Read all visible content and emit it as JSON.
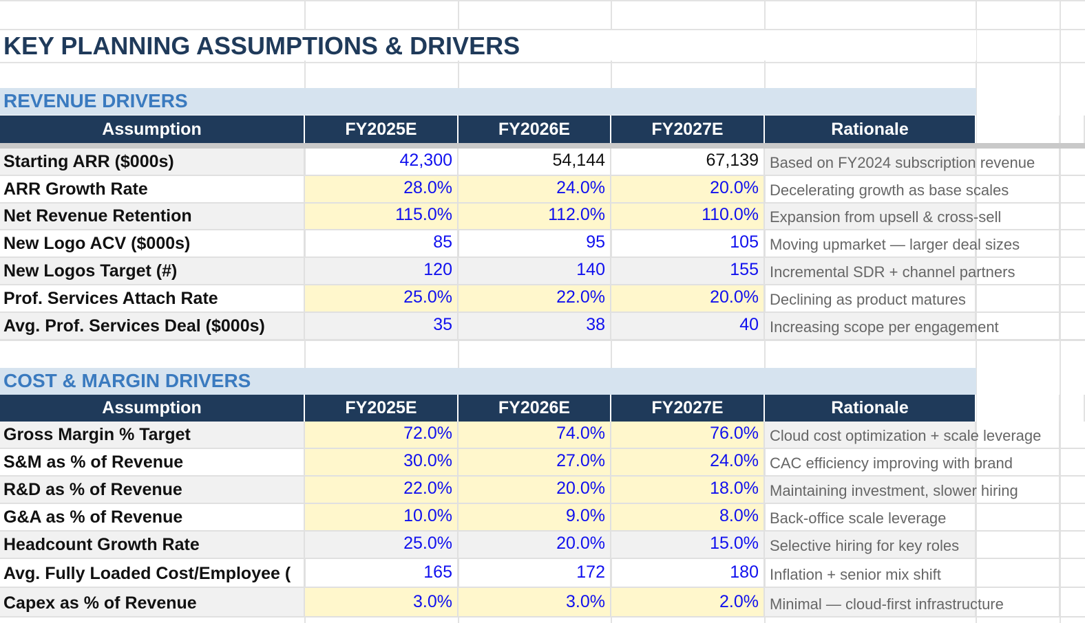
{
  "title": "KEY PLANNING ASSUMPTIONS & DRIVERS",
  "colors": {
    "header_bg": "#1f3a5a",
    "section_bg": "#d6e3ef",
    "section_text": "#3a7abf",
    "input_text": "#1010ee",
    "input_fill": "#fff7cc"
  },
  "columns": [
    "Assumption",
    "FY2025E",
    "FY2026E",
    "FY2027E",
    "Rationale"
  ],
  "revenue": {
    "title": "REVENUE DRIVERS",
    "rows": [
      {
        "label": "Starting ARR ($000s)",
        "values": [
          "42,300",
          "54,144",
          "67,139"
        ],
        "rationale": "Based on FY2024 subscription revenue"
      },
      {
        "label": "ARR Growth Rate",
        "values": [
          "28.0%",
          "24.0%",
          "20.0%"
        ],
        "rationale": "Decelerating growth as base scales"
      },
      {
        "label": "Net Revenue Retention",
        "values": [
          "115.0%",
          "112.0%",
          "110.0%"
        ],
        "rationale": "Expansion from upsell & cross-sell"
      },
      {
        "label": "New Logo ACV ($000s)",
        "values": [
          "85",
          "95",
          "105"
        ],
        "rationale": "Moving upmarket — larger deal sizes"
      },
      {
        "label": "New Logos Target (#)",
        "values": [
          "120",
          "140",
          "155"
        ],
        "rationale": "Incremental SDR + channel partners"
      },
      {
        "label": "Prof. Services Attach Rate",
        "values": [
          "25.0%",
          "22.0%",
          "20.0%"
        ],
        "rationale": "Declining as product matures"
      },
      {
        "label": "Avg. Prof. Services Deal ($000s)",
        "values": [
          "35",
          "38",
          "40"
        ],
        "rationale": "Increasing scope per engagement"
      }
    ]
  },
  "cost": {
    "title": "COST & MARGIN DRIVERS",
    "rows": [
      {
        "label": "Gross Margin % Target",
        "values": [
          "72.0%",
          "74.0%",
          "76.0%"
        ],
        "rationale": "Cloud cost optimization + scale leverage"
      },
      {
        "label": "S&M as % of Revenue",
        "values": [
          "30.0%",
          "27.0%",
          "24.0%"
        ],
        "rationale": "CAC efficiency improving with brand"
      },
      {
        "label": "R&D as % of Revenue",
        "values": [
          "22.0%",
          "20.0%",
          "18.0%"
        ],
        "rationale": "Maintaining investment, slower hiring"
      },
      {
        "label": "G&A as % of Revenue",
        "values": [
          "10.0%",
          "9.0%",
          "8.0%"
        ],
        "rationale": "Back-office scale leverage"
      },
      {
        "label": "Headcount Growth Rate",
        "values": [
          "25.0%",
          "20.0%",
          "15.0%"
        ],
        "rationale": "Selective hiring for key roles"
      },
      {
        "label": "Avg. Fully Loaded Cost/Employee (",
        "values": [
          "165",
          "172",
          "180"
        ],
        "rationale": "Inflation + senior mix shift"
      },
      {
        "label": "Capex as % of Revenue",
        "values": [
          "3.0%",
          "3.0%",
          "2.0%"
        ],
        "rationale": "Minimal — cloud-first infrastructure"
      }
    ]
  }
}
